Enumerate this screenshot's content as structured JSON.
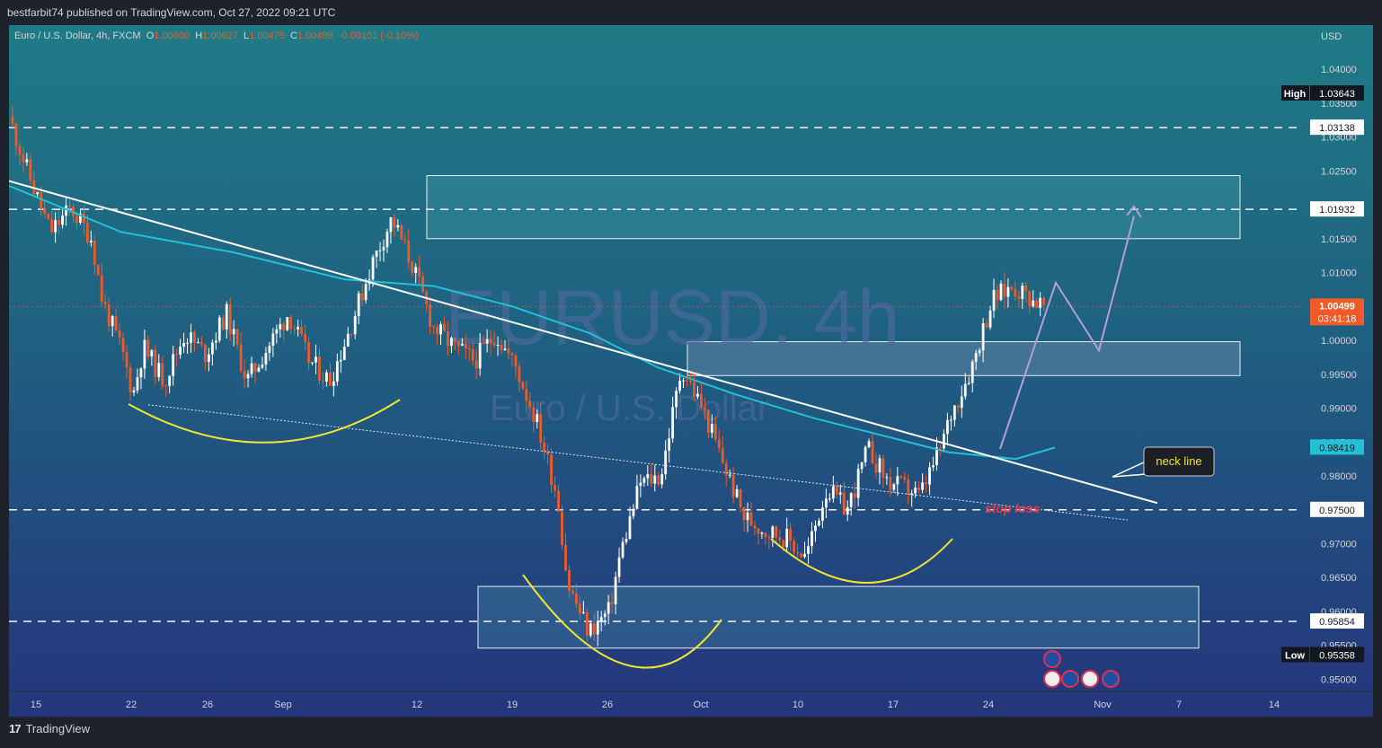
{
  "header": {
    "published": "bestfarbit74 published on TradingView.com, Oct 27, 2022 09:21 UTC"
  },
  "symbol": {
    "name": "Euro / U.S. Dollar, 4h, FXCM",
    "o_label": "O",
    "o": "1.00600",
    "h_label": "H",
    "h": "1.00627",
    "l_label": "L",
    "l": "1.00475",
    "c_label": "C",
    "c": "1.00499",
    "change": "-0.00101 (-0.10%)"
  },
  "watermark": {
    "line1": "EURUSD, 4h",
    "line2": "Euro / U.S. Dollar"
  },
  "currency": "USD",
  "brand": {
    "logo": "17",
    "text": "TradingView"
  },
  "annotations": {
    "neck_line": "neck line",
    "stop_loss": "stop loss"
  },
  "tags": {
    "high_label": "High",
    "high": "1.03643",
    "low_label": "Low",
    "low": "0.95358",
    "level1": "1.03138",
    "level2": "1.01932",
    "current": "1.00499",
    "countdown": "03:41:18",
    "ma": "0.98419",
    "level3": "0.97500",
    "level4": "0.95854"
  },
  "colors": {
    "up": "#ffffff",
    "down": "#f05a28",
    "ma": "#22c1d6",
    "arc": "#f2e435",
    "projection": "#b39ddb",
    "stop_loss": "#f23645"
  },
  "chart_data": {
    "type": "candlestick",
    "title": "EURUSD, 4h",
    "ylim": [
      0.9445,
      1.0465
    ],
    "y_ticks": [
      "1.04000",
      "1.03500",
      "1.03000",
      "1.02500",
      "1.02000",
      "1.01500",
      "1.01000",
      "1.00500",
      "1.00000",
      "0.99500",
      "0.99000",
      "0.98500",
      "0.98000",
      "0.97500",
      "0.97000",
      "0.96500",
      "0.96000",
      "0.95500",
      "0.95000"
    ],
    "x_ticks": [
      "15",
      "22",
      "26",
      "Sep",
      "12",
      "19",
      "26",
      "Oct",
      "10",
      "17",
      "24",
      "Nov",
      "7",
      "14"
    ],
    "price_path": [
      [
        0,
        1.033
      ],
      [
        0.02,
        1.024
      ],
      [
        0.04,
        1.016
      ],
      [
        0.06,
        1.0195
      ],
      [
        0.08,
        1.015
      ],
      [
        0.09,
        1.006
      ],
      [
        0.11,
        0.998
      ],
      [
        0.12,
        0.992
      ],
      [
        0.13,
        0.999
      ],
      [
        0.15,
        0.994
      ],
      [
        0.17,
        1.001
      ],
      [
        0.19,
        0.998
      ],
      [
        0.21,
        1.004
      ],
      [
        0.23,
        0.994
      ],
      [
        0.25,
        0.999
      ],
      [
        0.27,
        1.004
      ],
      [
        0.29,
        0.997
      ],
      [
        0.31,
        0.994
      ],
      [
        0.33,
        1.002
      ],
      [
        0.35,
        1.011
      ],
      [
        0.37,
        1.018
      ],
      [
        0.39,
        1.011
      ],
      [
        0.41,
        1.002
      ],
      [
        0.43,
        0.999
      ],
      [
        0.45,
        0.997
      ],
      [
        0.47,
        1.001
      ],
      [
        0.49,
        0.996
      ],
      [
        0.51,
        0.988
      ],
      [
        0.53,
        0.977
      ],
      [
        0.54,
        0.964
      ],
      [
        0.56,
        0.957
      ],
      [
        0.58,
        0.96
      ],
      [
        0.59,
        0.968
      ],
      [
        0.61,
        0.979
      ],
      [
        0.63,
        0.98
      ],
      [
        0.65,
        0.996
      ],
      [
        0.67,
        0.99
      ],
      [
        0.69,
        0.982
      ],
      [
        0.71,
        0.974
      ],
      [
        0.73,
        0.972
      ],
      [
        0.75,
        0.971
      ],
      [
        0.77,
        0.968
      ],
      [
        0.79,
        0.978
      ],
      [
        0.81,
        0.975
      ],
      [
        0.83,
        0.984
      ],
      [
        0.85,
        0.979
      ],
      [
        0.87,
        0.978
      ],
      [
        0.88,
        0.977
      ],
      [
        0.9,
        0.984
      ],
      [
        0.91,
        0.989
      ],
      [
        0.93,
        0.996
      ],
      [
        0.95,
        1.006
      ],
      [
        0.97,
        1.008
      ],
      [
        1,
        1.005
      ]
    ],
    "moving_average": {
      "last": 0.98419
    },
    "lines": {
      "neckline": {
        "from": 1.0235,
        "to": 0.976
      },
      "support_dotted": {
        "from": 0.9905,
        "to": 0.9735
      }
    },
    "horizontal_levels": [
      1.03138,
      1.01932,
      0.975,
      0.95854
    ],
    "zones": [
      [
        1.0243,
        1.015
      ],
      [
        0.9998,
        0.9948
      ],
      [
        0.9637,
        0.9546
      ]
    ],
    "projection": [
      1.0085,
      0.9985,
      1.019
    ]
  }
}
